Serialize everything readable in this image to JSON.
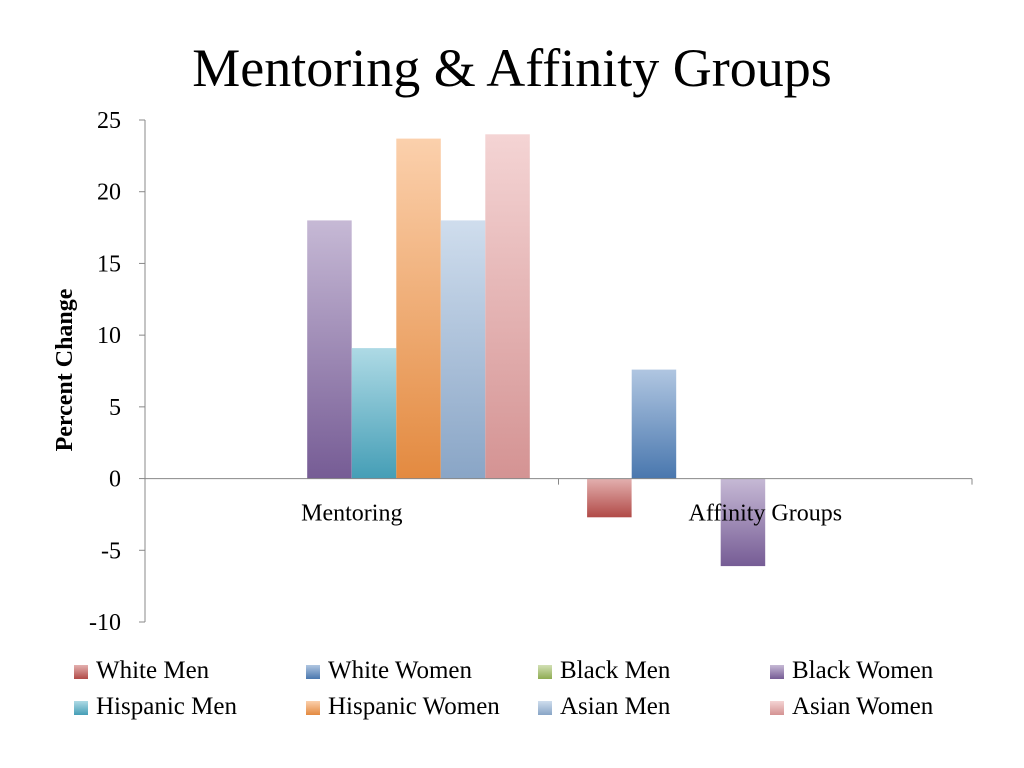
{
  "chart_data": {
    "type": "bar",
    "title": "Mentoring & Affinity Groups",
    "ylabel": "Percent Change",
    "xlabel": "",
    "ylim": [
      -10,
      25
    ],
    "yticks": [
      25,
      20,
      15,
      10,
      5,
      0,
      -5,
      -10
    ],
    "categories": [
      "Mentoring",
      "Affinity Groups"
    ],
    "grid": false,
    "legend": "bottom",
    "series": [
      {
        "name": "White Men",
        "color": "#c0504d",
        "values": [
          0,
          -2.7
        ]
      },
      {
        "name": "White Women",
        "color": "#4f81bd",
        "values": [
          0,
          7.6
        ]
      },
      {
        "name": "Black Men",
        "color": "#9bbb59",
        "values": [
          0,
          0
        ]
      },
      {
        "name": "Black Women",
        "color": "#8064a2",
        "values": [
          18,
          -6.1
        ]
      },
      {
        "name": "Hispanic Men",
        "color": "#4bacc6",
        "values": [
          9.1,
          0
        ]
      },
      {
        "name": "Hispanic Women",
        "color": "#f79646",
        "values": [
          23.7,
          0
        ]
      },
      {
        "name": "Asian Men",
        "color": "#95b3d7",
        "values": [
          18,
          0
        ]
      },
      {
        "name": "Asian Women",
        "color": "#e6a0a0",
        "values": [
          24,
          0
        ]
      }
    ]
  }
}
